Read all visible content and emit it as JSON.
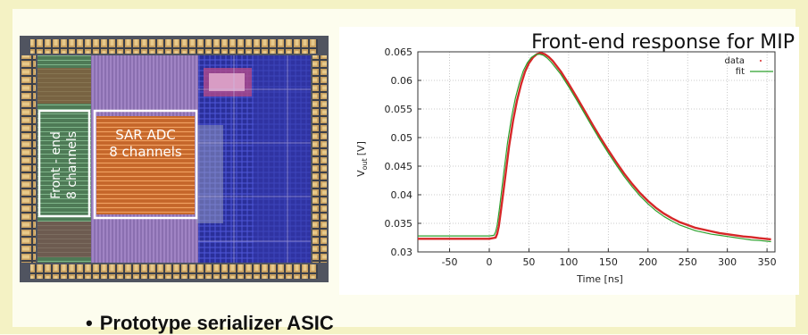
{
  "slide": {
    "bullet_text": "Prototype serializer ASIC"
  },
  "chip_image": {
    "frontend_label_line1": "Front - end",
    "frontend_label_line2": "8 channels",
    "adc_label_line1": "SAR ADC",
    "adc_label_line2": "8 channels"
  },
  "chart_data": {
    "type": "line",
    "title": "Front-end response for MIP",
    "xlabel": "Time [ns]",
    "ylabel_main": "V",
    "ylabel_sub": "out",
    "ylabel_unit": "[V]",
    "xlim": [
      -90,
      360
    ],
    "ylim": [
      0.03,
      0.065
    ],
    "xticks": [
      -50,
      0,
      50,
      100,
      150,
      200,
      250,
      300,
      350
    ],
    "yticks": [
      0.03,
      0.035,
      0.04,
      0.045,
      0.05,
      0.055,
      0.06,
      0.065
    ],
    "grid": true,
    "legend_position": "top-right",
    "series": [
      {
        "name": "data",
        "color": "#d62728",
        "x": [
          -90,
          0,
          8,
          10,
          12,
          15,
          20,
          25,
          30,
          35,
          40,
          45,
          50,
          55,
          60,
          65,
          70,
          75,
          80,
          90,
          100,
          110,
          120,
          130,
          140,
          150,
          160,
          170,
          180,
          190,
          200,
          210,
          220,
          230,
          240,
          250,
          260,
          270,
          280,
          290,
          300,
          310,
          320,
          330,
          340,
          355
        ],
        "y": [
          0.0323,
          0.0323,
          0.0325,
          0.0332,
          0.0345,
          0.0375,
          0.043,
          0.0485,
          0.053,
          0.0565,
          0.0593,
          0.0615,
          0.063,
          0.064,
          0.0646,
          0.0648,
          0.0646,
          0.0641,
          0.0634,
          0.0616,
          0.0594,
          0.0571,
          0.0547,
          0.0523,
          0.05,
          0.0478,
          0.0457,
          0.0437,
          0.0419,
          0.0403,
          0.0389,
          0.0377,
          0.0367,
          0.0359,
          0.0352,
          0.0347,
          0.0342,
          0.0339,
          0.0336,
          0.0333,
          0.0331,
          0.0329,
          0.0327,
          0.0326,
          0.0324,
          0.0322
        ]
      },
      {
        "name": "fit",
        "color": "#2ca02c",
        "x": [
          -90,
          0,
          6,
          8,
          10,
          13,
          18,
          23,
          28,
          33,
          38,
          43,
          48,
          53,
          58,
          63,
          68,
          73,
          78,
          90,
          100,
          110,
          120,
          130,
          140,
          150,
          160,
          170,
          180,
          190,
          200,
          210,
          220,
          230,
          240,
          250,
          260,
          270,
          280,
          290,
          300,
          310,
          320,
          330,
          340,
          355
        ],
        "y": [
          0.0328,
          0.0328,
          0.0329,
          0.0335,
          0.0347,
          0.0378,
          0.0435,
          0.049,
          0.0535,
          0.0569,
          0.0596,
          0.0617,
          0.0631,
          0.064,
          0.0645,
          0.0646,
          0.0644,
          0.0639,
          0.0632,
          0.0611,
          0.0589,
          0.0566,
          0.0542,
          0.0518,
          0.0495,
          0.0473,
          0.0452,
          0.0432,
          0.0414,
          0.0398,
          0.0384,
          0.0372,
          0.0362,
          0.0354,
          0.0347,
          0.0342,
          0.0337,
          0.0334,
          0.0331,
          0.0329,
          0.0327,
          0.0325,
          0.0323,
          0.0321,
          0.032,
          0.0318
        ]
      }
    ]
  }
}
